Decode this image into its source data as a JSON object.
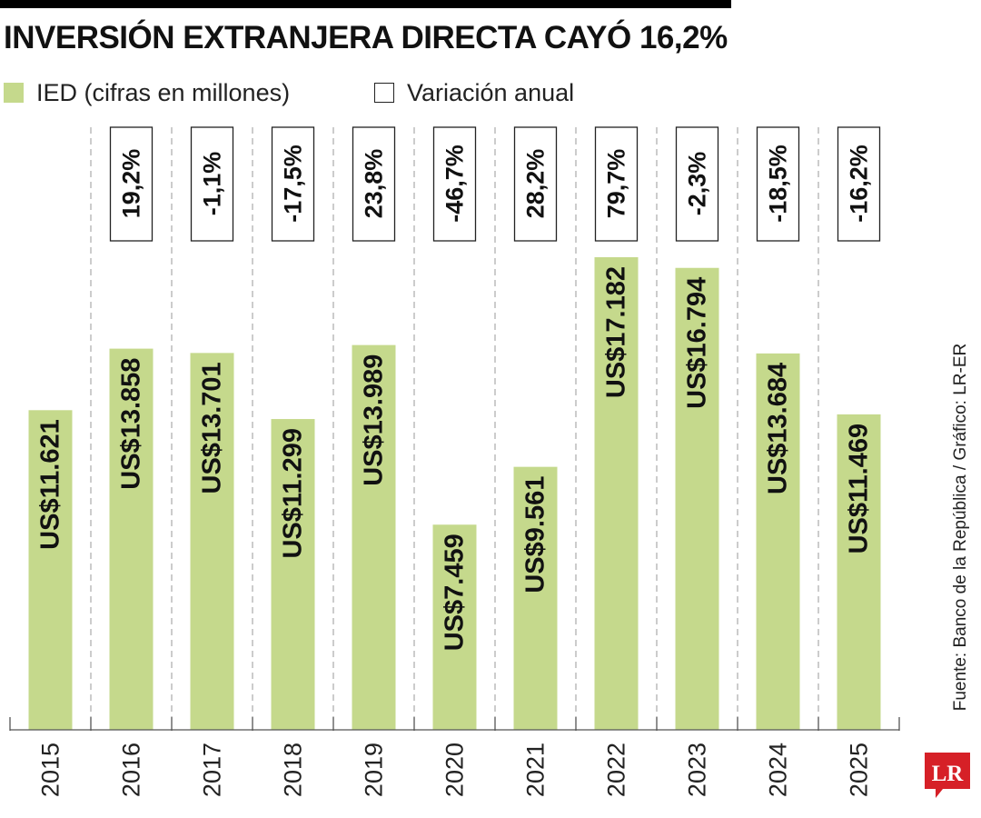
{
  "title": "INVERSIÓN EXTRANJERA DIRECTA CAYÓ 16,2%",
  "legend": [
    {
      "label": "IED (cifras en millones)",
      "color": "#c5d98c",
      "style": "filled"
    },
    {
      "label": "Variación anual",
      "color": "#ffffff",
      "style": "outline"
    }
  ],
  "source": "Fuente: Banco de la República / Gráfico: LR-ER",
  "logo_text": "LR",
  "colors": {
    "bar": "#c5d98c",
    "logo": "#d62027",
    "text": "#111111",
    "grid": "#999999"
  },
  "chart_data": {
    "type": "bar",
    "title": "INVERSIÓN EXTRANJERA DIRECTA CAYÓ 16,2%",
    "xlabel": "",
    "ylabel": "",
    "categories": [
      "2015",
      "2016",
      "2017",
      "2018",
      "2019",
      "2020",
      "2021",
      "2022",
      "2023",
      "2024",
      "2025"
    ],
    "series": [
      {
        "name": "IED (cifras en millones)",
        "values": [
          11621,
          13858,
          13701,
          11299,
          13989,
          7459,
          9561,
          17182,
          16794,
          13684,
          11469
        ],
        "labels": [
          "US$11.621",
          "US$13.858",
          "US$13.701",
          "US$11.299",
          "US$13.989",
          "US$7.459",
          "US$9.561",
          "US$17.182",
          "US$16.794",
          "US$13.684",
          "US$11.469"
        ]
      },
      {
        "name": "Variación anual",
        "values": [
          null,
          19.2,
          -1.1,
          -17.5,
          23.8,
          -46.7,
          28.2,
          79.7,
          -2.3,
          -18.5,
          -16.2
        ],
        "labels": [
          "",
          "19,2%",
          "-1,1%",
          "-17,5%",
          "23,8%",
          "-46,7%",
          "28,2%",
          "79,7%",
          "-2,3%",
          "-18,5%",
          "-16,2%"
        ]
      }
    ],
    "ylim": [
      0,
      20000
    ],
    "grid": false,
    "legend_position": "top-left"
  }
}
